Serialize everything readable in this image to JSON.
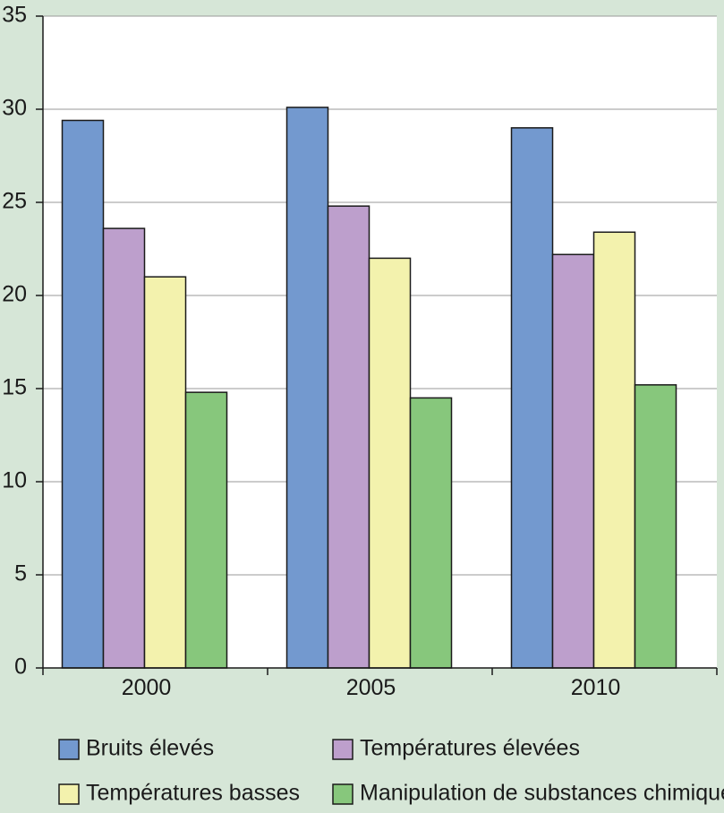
{
  "chart_data": {
    "type": "bar",
    "categories": [
      "2000",
      "2005",
      "2010"
    ],
    "series": [
      {
        "name": "Bruits élevés",
        "values": [
          29.4,
          30.1,
          29.0
        ],
        "color": "#7399cf"
      },
      {
        "name": "Températures élevées",
        "values": [
          23.6,
          24.8,
          22.2
        ],
        "color": "#bd9fcc"
      },
      {
        "name": "Températures basses",
        "values": [
          21.0,
          22.0,
          23.4
        ],
        "color": "#f3f2ad"
      },
      {
        "name": "Manipulation de substances chimiques",
        "values": [
          14.8,
          14.5,
          15.2
        ],
        "color": "#87c77c"
      }
    ],
    "ylim": [
      0,
      35
    ],
    "yticks": [
      "0",
      "5",
      "10",
      "15",
      "20",
      "25",
      "30",
      "35"
    ],
    "grid": true,
    "legend_position": "bottom",
    "plot_background": "#ffffff",
    "figure_background": "#d6e6d7"
  }
}
